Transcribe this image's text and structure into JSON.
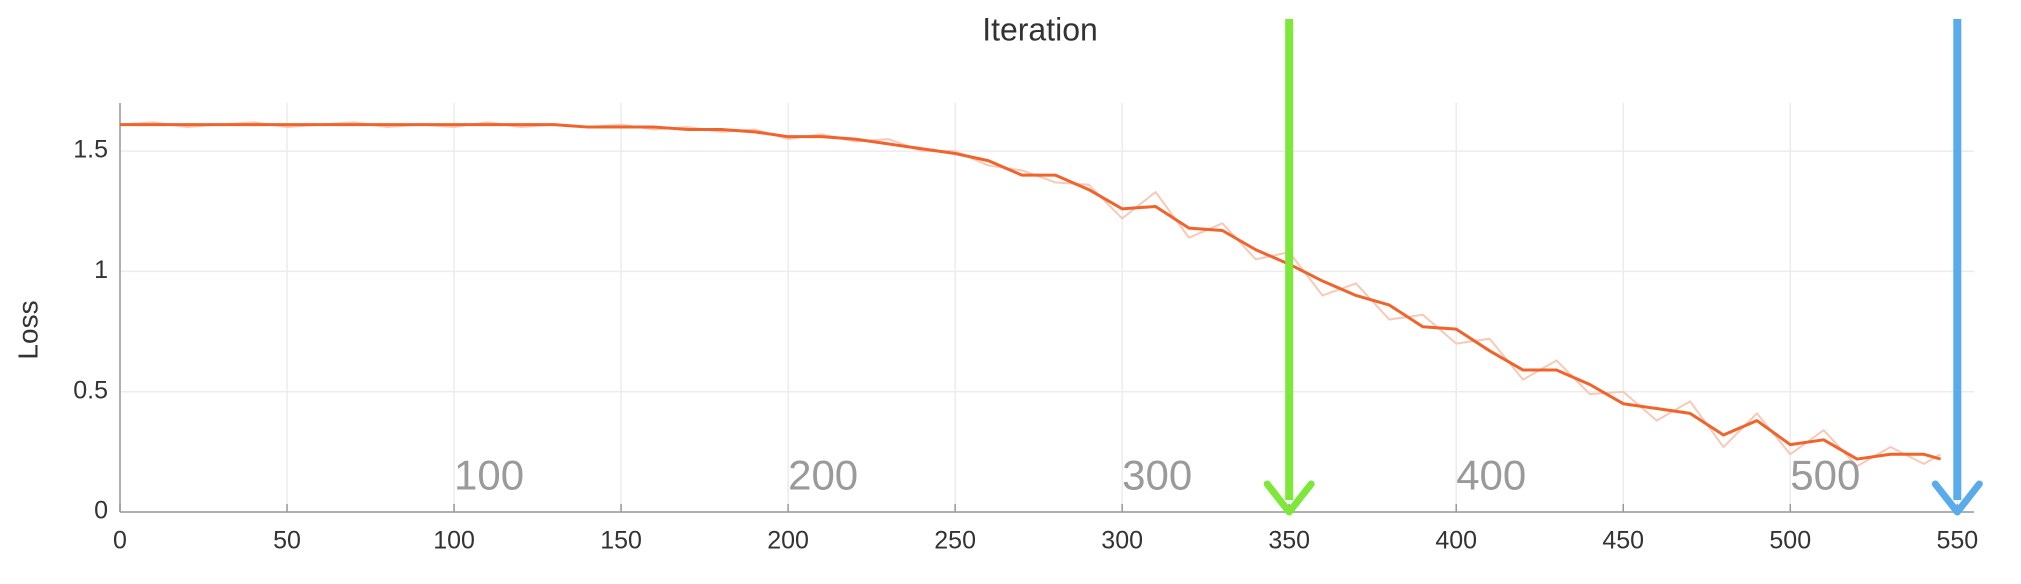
{
  "chart_data": {
    "type": "line",
    "title": "Iteration",
    "y_label": "Loss",
    "xlim": [
      0,
      555
    ],
    "ylim": [
      0,
      1.7
    ],
    "xticks": [
      0,
      50,
      100,
      150,
      200,
      250,
      300,
      350,
      400,
      450,
      500,
      550
    ],
    "yticks": [
      0,
      0.5,
      1,
      1.5
    ],
    "grid": true,
    "x": [
      0,
      10,
      20,
      30,
      40,
      50,
      60,
      70,
      80,
      90,
      100,
      110,
      120,
      130,
      140,
      150,
      160,
      170,
      180,
      190,
      200,
      210,
      220,
      230,
      240,
      250,
      260,
      270,
      280,
      290,
      300,
      310,
      320,
      330,
      340,
      350,
      360,
      370,
      380,
      390,
      400,
      410,
      420,
      430,
      440,
      450,
      460,
      470,
      480,
      490,
      500,
      510,
      520,
      530,
      540,
      545
    ],
    "series": [
      {
        "color": "#f8c9b6",
        "values": [
          1.61,
          1.62,
          1.6,
          1.61,
          1.62,
          1.6,
          1.61,
          1.62,
          1.6,
          1.61,
          1.6,
          1.62,
          1.6,
          1.61,
          1.6,
          1.61,
          1.59,
          1.6,
          1.58,
          1.59,
          1.55,
          1.57,
          1.54,
          1.55,
          1.5,
          1.5,
          1.44,
          1.42,
          1.37,
          1.36,
          1.22,
          1.33,
          1.14,
          1.2,
          1.05,
          1.08,
          0.9,
          0.95,
          0.8,
          0.82,
          0.7,
          0.72,
          0.55,
          0.63,
          0.49,
          0.5,
          0.38,
          0.46,
          0.27,
          0.41,
          0.24,
          0.34,
          0.19,
          0.27,
          0.2,
          0.24
        ]
      },
      {
        "color": "#f0642c",
        "values": [
          1.61,
          1.61,
          1.61,
          1.61,
          1.61,
          1.61,
          1.61,
          1.61,
          1.61,
          1.61,
          1.61,
          1.61,
          1.61,
          1.61,
          1.6,
          1.6,
          1.6,
          1.59,
          1.59,
          1.58,
          1.56,
          1.56,
          1.55,
          1.53,
          1.51,
          1.49,
          1.46,
          1.4,
          1.4,
          1.34,
          1.26,
          1.27,
          1.18,
          1.17,
          1.09,
          1.03,
          0.96,
          0.9,
          0.86,
          0.77,
          0.76,
          0.67,
          0.59,
          0.59,
          0.53,
          0.45,
          0.43,
          0.41,
          0.32,
          0.38,
          0.28,
          0.3,
          0.22,
          0.24,
          0.24,
          0.22
        ]
      }
    ],
    "annotations": [
      {
        "text": "100",
        "x": 100,
        "y": 0.14
      },
      {
        "text": "200",
        "x": 200,
        "y": 0.14
      },
      {
        "text": "300",
        "x": 300,
        "y": 0.14
      },
      {
        "text": "400",
        "x": 400,
        "y": 0.14
      },
      {
        "text": "500",
        "x": 500,
        "y": 0.14
      }
    ],
    "markers": [
      {
        "x": 350,
        "color": "#7ee83a"
      },
      {
        "x": 550,
        "color": "#5aabeb"
      }
    ]
  }
}
